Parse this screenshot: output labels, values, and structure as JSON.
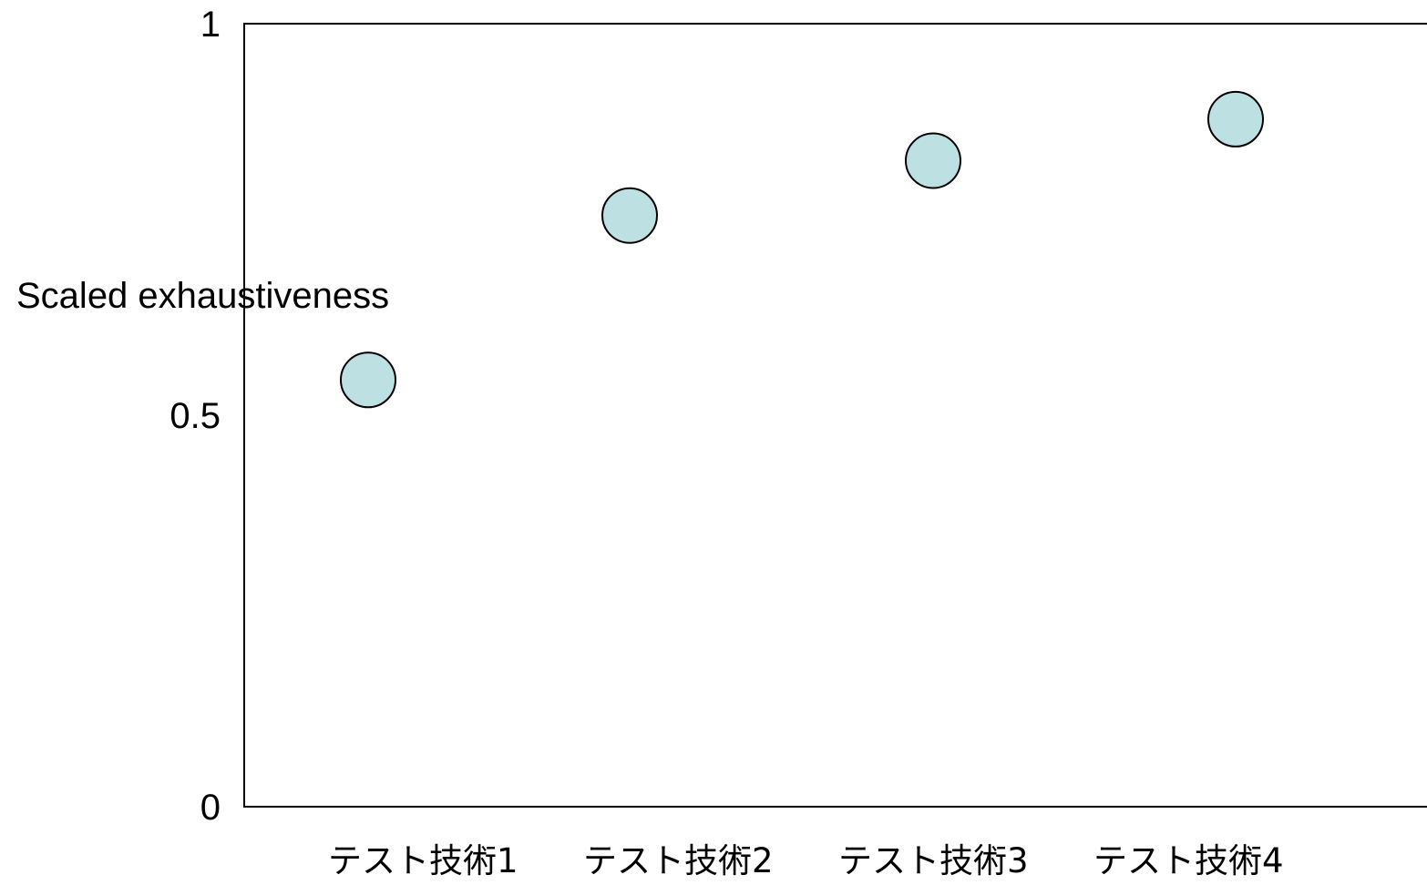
{
  "chart_data": {
    "type": "scatter",
    "title": "",
    "xlabel": "",
    "ylabel": "Scaled exhaustiveness",
    "categories": [
      "テスト技術1",
      "テスト技術2",
      "テスト技術3",
      "テスト技術4"
    ],
    "values": [
      0.545,
      0.755,
      0.825,
      0.878
    ],
    "ylim": [
      0,
      1
    ],
    "yticks": [
      "0",
      "0.5",
      "1"
    ],
    "grid": false,
    "legend": "none",
    "marker_color": "#bde0e3",
    "marker_stroke": "#000000"
  }
}
